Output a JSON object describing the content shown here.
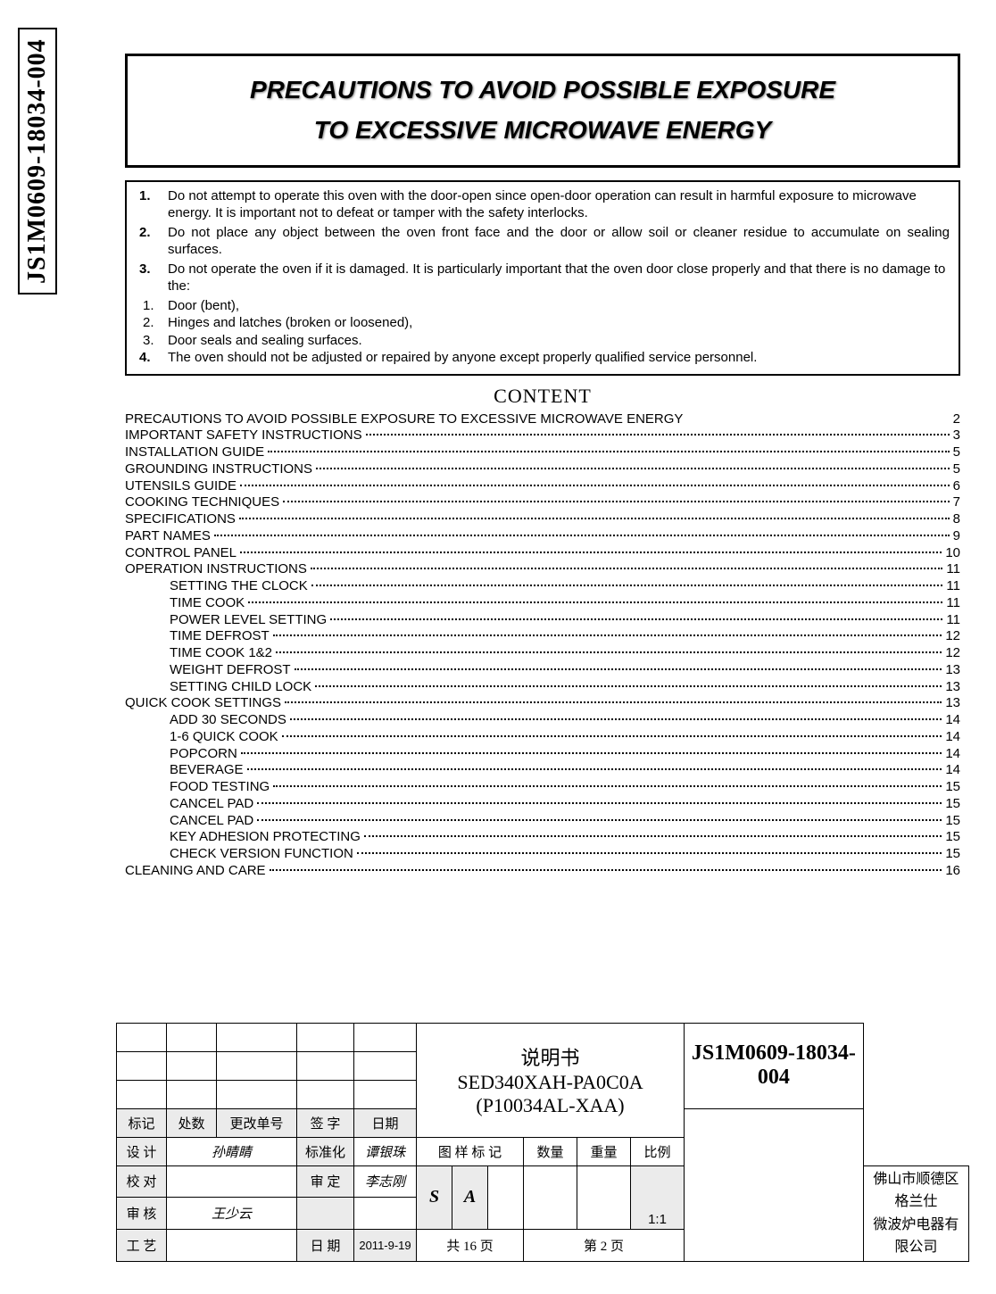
{
  "vertical_label": "JS1M0609-18034-004",
  "title_line1": "PRECAUTIONS TO AVOID POSSIBLE EXPOSURE",
  "title_line2": "TO EXCESSIVE MICROWAVE ENERGY",
  "precautions": {
    "p1_num": "1.",
    "p1": "Do not attempt to operate this oven with the door-open since open-door operation can result in harmful exposure to microwave energy. It is important not to defeat or tamper with the safety interlocks.",
    "p2_num": "2.",
    "p2": "Do not place any object between the oven front face and the door or allow soil or cleaner residue to accumulate on sealing surfaces.",
    "p3_num": "3.",
    "p3": "Do not operate the oven if it is damaged. It is particularly important that the oven door close properly and that there is no damage to the:",
    "s1_num": "1.",
    "s1": "Door (bent),",
    "s2_num": "2.",
    "s2": "Hinges and latches (broken or loosened),",
    "s3_num": "3.",
    "s3": "Door seals and sealing surfaces.",
    "p4_num": "4.",
    "p4": "The oven should not be adjusted or repaired by anyone except properly qualified service personnel."
  },
  "content_heading": "CONTENT",
  "toc": [
    {
      "label": "PRECAUTIONS TO AVOID POSSIBLE EXPOSURE TO EXCESSIVE MICROWAVE ENERGY",
      "page": "2",
      "indent": 0,
      "nodots": true
    },
    {
      "label": "IMPORTANT SAFETY INSTRUCTIONS",
      "page": "3",
      "indent": 0
    },
    {
      "label": "INSTALLATION GUIDE",
      "page": "5",
      "indent": 0
    },
    {
      "label": "GROUNDING INSTRUCTIONS",
      "page": "5",
      "indent": 0
    },
    {
      "label": "UTENSILS GUIDE",
      "page": "6",
      "indent": 0
    },
    {
      "label": "COOKING TECHNIQUES",
      "page": "7",
      "indent": 0
    },
    {
      "label": "SPECIFICATIONS",
      "page": "8",
      "indent": 0
    },
    {
      "label": "PART NAMES",
      "page": "9",
      "indent": 0
    },
    {
      "label": "CONTROL PANEL",
      "page": "10",
      "indent": 0
    },
    {
      "label": "OPERATION INSTRUCTIONS",
      "page": "11",
      "indent": 0
    },
    {
      "label": "SETTING THE CLOCK",
      "page": "11",
      "indent": 1
    },
    {
      "label": "TIME COOK",
      "page": "11",
      "indent": 1
    },
    {
      "label": "POWER LEVEL SETTING",
      "page": "11",
      "indent": 1
    },
    {
      "label": "TIME DEFROST",
      "page": "12",
      "indent": 1
    },
    {
      "label": "TIME COOK 1&2",
      "page": "12",
      "indent": 1
    },
    {
      "label": "WEIGHT DEFROST",
      "page": "13",
      "indent": 1
    },
    {
      "label": "SETTING CHILD LOCK",
      "page": "13",
      "indent": 1
    },
    {
      "label": "QUICK COOK SETTINGS",
      "page": "13",
      "indent": 0
    },
    {
      "label": "ADD 30 SECONDS",
      "page": "14",
      "indent": 1
    },
    {
      "label": "1-6 QUICK COOK",
      "page": "14",
      "indent": 1
    },
    {
      "label": "POPCORN",
      "page": "14",
      "indent": 1
    },
    {
      "label": "BEVERAGE",
      "page": "14",
      "indent": 1
    },
    {
      "label": "FOOD TESTING",
      "page": "15",
      "indent": 1
    },
    {
      "label": "CANCEL PAD",
      "page": "15",
      "indent": 1
    },
    {
      "label": "CANCEL PAD",
      "page": "15",
      "indent": 1
    },
    {
      "label": "KEY ADHESION PROTECTING",
      "page": "15",
      "indent": 1
    },
    {
      "label": "CHECK VERSION FUNCTION",
      "page": "15",
      "indent": 1
    },
    {
      "label": "CLEANING AND CARE",
      "page": "16",
      "indent": 0
    }
  ],
  "footer": {
    "spec_title_l1": "说明书",
    "spec_title_l2": "SED340XAH-PA0C0A",
    "spec_title_l3": "(P10034AL-XAA)",
    "part_number": "JS1M0609-18034-004",
    "hdr_mark": "标记",
    "hdr_qty": "处数",
    "hdr_change": "更改单号",
    "hdr_sign": "签 字",
    "hdr_date": "日期",
    "r_design": "设 计",
    "v_design": "孙睛睛",
    "r_standard": "标准化",
    "v_standard": "谭银珠",
    "r_drawing": "图 样 标 记",
    "r_count": "数量",
    "r_weight": "重量",
    "r_ratio": "比例",
    "r_proof": "校 对",
    "r_audit": "审 定",
    "v_audit": "李志刚",
    "letter_s": "S",
    "letter_a": "A",
    "ratio_val": "1:1",
    "r_review": "审 核",
    "v_review": "王少云",
    "r_craft": "工 艺",
    "r_date2": "日 期",
    "v_date2": "2011-9-19",
    "pages_total": "共 16 页",
    "page_current": "第 2 页",
    "company_l1": "佛山市顺德区格兰仕",
    "company_l2": "微波炉电器有限公司"
  }
}
